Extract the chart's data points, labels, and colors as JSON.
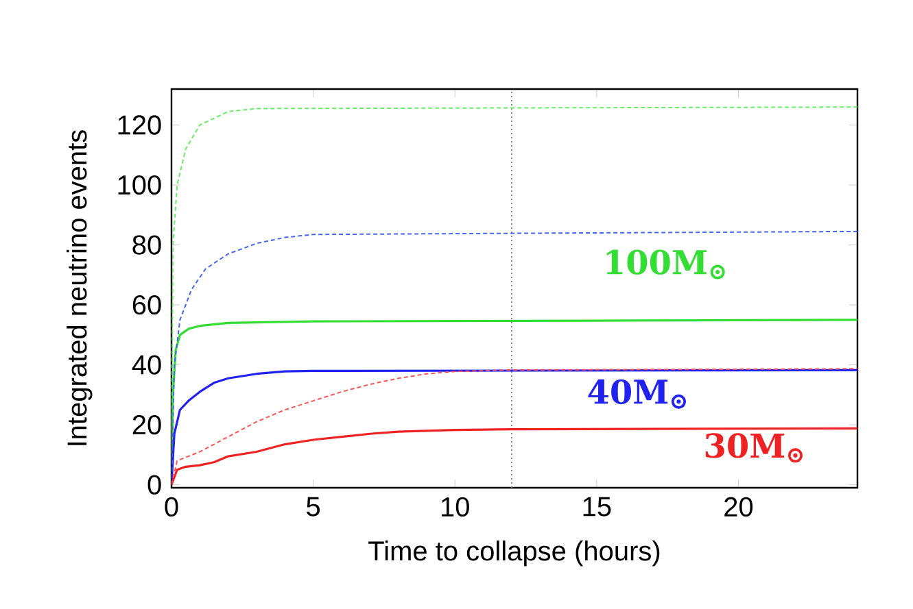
{
  "chart_data": {
    "type": "line",
    "xlabel": "Time to collapse (hours)",
    "ylabel": "Integrated neutrino events",
    "xlim": [
      0,
      24.2
    ],
    "ylim": [
      -1,
      132
    ],
    "xticks": [
      0,
      5,
      10,
      15,
      20
    ],
    "yticks": [
      0,
      20,
      40,
      60,
      80,
      100,
      120
    ],
    "grid": false,
    "marker": "none",
    "series": [
      {
        "color": "#33dd33",
        "line_style": "solid",
        "x": [
          0,
          0.05,
          0.15,
          0.3,
          0.6,
          1,
          2,
          5,
          24.2
        ],
        "values": [
          0,
          30,
          45,
          50,
          52,
          53,
          54,
          54.5,
          55
        ]
      },
      {
        "color": "#66ee66",
        "line_style": "dashed",
        "x": [
          0,
          0.05,
          0.2,
          0.5,
          1,
          2,
          3,
          24.2
        ],
        "values": [
          0,
          80,
          100,
          112,
          120,
          124.5,
          125.5,
          126
        ]
      },
      {
        "color": "#2222ee",
        "line_style": "solid",
        "x": [
          0,
          0.1,
          0.3,
          0.6,
          1,
          1.5,
          2,
          3,
          4,
          5,
          24.2
        ],
        "values": [
          0,
          17,
          25,
          28,
          31,
          34,
          35.5,
          37,
          37.8,
          38,
          38.2
        ]
      },
      {
        "color": "#4466ee",
        "line_style": "dashed",
        "x": [
          0,
          0.1,
          0.3,
          0.7,
          1.2,
          2,
          3,
          4,
          5,
          24.2
        ],
        "values": [
          0,
          40,
          55,
          65,
          72,
          77,
          80.5,
          82.5,
          83.5,
          84.5
        ]
      },
      {
        "color": "#ee2222",
        "line_style": "solid",
        "x": [
          0,
          0.2,
          0.5,
          1,
          1.5,
          2,
          3,
          4,
          5,
          6,
          7,
          8,
          10,
          12,
          24.2
        ],
        "values": [
          0,
          5,
          6,
          6.5,
          7.5,
          9.5,
          11,
          13.5,
          15,
          16,
          17,
          17.7,
          18.3,
          18.5,
          18.8
        ]
      },
      {
        "color": "#ff5555",
        "line_style": "dashed",
        "x": [
          0,
          0.2,
          1,
          2,
          3,
          4,
          5,
          6,
          7,
          8,
          9,
          10,
          12,
          24.2
        ],
        "values": [
          0,
          8,
          11,
          16,
          21,
          25,
          28,
          31,
          33.5,
          35.5,
          37,
          37.8,
          38.3,
          38.7
        ]
      }
    ],
    "ref_lines": [
      {
        "axis": "x",
        "value": 12,
        "color": "#808080",
        "line_style": "dotted"
      }
    ],
    "annotations": [
      "100M$_{⊙}$",
      "40M$_{⊙}$",
      "30M$_{⊙}$"
    ]
  }
}
